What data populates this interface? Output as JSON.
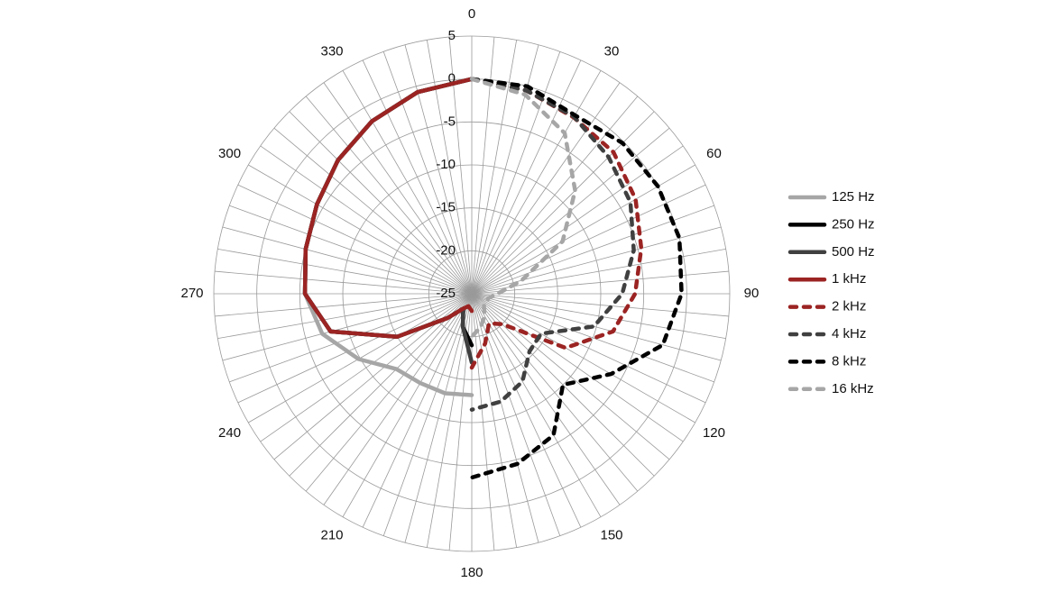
{
  "chart_data": {
    "type": "polar",
    "rlim": [
      -25,
      5
    ],
    "rticks": [
      -25,
      -20,
      -15,
      -10,
      -5,
      0,
      5
    ],
    "thetaticks": [
      0,
      30,
      60,
      90,
      120,
      150,
      180,
      210,
      240,
      270,
      300,
      330
    ],
    "thetagrid": [
      0,
      5,
      10,
      15,
      20,
      25,
      30,
      35,
      40,
      45,
      50,
      55,
      60,
      65,
      70,
      75,
      80,
      85,
      90,
      95,
      100,
      105,
      110,
      115,
      120,
      125,
      130,
      135,
      140,
      145,
      150,
      155,
      160,
      165,
      170,
      175,
      180,
      185,
      190,
      195,
      200,
      205,
      210,
      215,
      220,
      225,
      230,
      235,
      240,
      245,
      250,
      255,
      260,
      265,
      270,
      275,
      280,
      285,
      290,
      295,
      300,
      305,
      310,
      315,
      320,
      325,
      330,
      335,
      340,
      345,
      350,
      355
    ],
    "grid": true,
    "legend": "right",
    "series": [
      {
        "name": "125 Hz",
        "color": "#a6a6a6",
        "dashed": false,
        "theta": [
          180,
          195,
          210,
          225,
          240,
          255,
          270,
          285,
          300,
          315,
          330,
          345,
          360
        ],
        "values": [
          -13.2,
          -13,
          -13,
          -12.6,
          -9.8,
          -7,
          -5.6,
          -5,
          -4.2,
          -3,
          -1.8,
          -0.7,
          0
        ]
      },
      {
        "name": "250 Hz",
        "color": "#000000",
        "dashed": false,
        "theta": [
          180,
          195,
          210,
          225,
          240,
          255,
          270,
          285,
          300,
          315,
          330,
          345,
          360
        ],
        "values": [
          -19,
          -21,
          -23,
          -21,
          -15,
          -8,
          -5.6,
          -5,
          -4.2,
          -3,
          -1.8,
          -0.7,
          0
        ]
      },
      {
        "name": "500 Hz",
        "color": "#404040",
        "dashed": false,
        "theta": [
          180,
          195,
          210,
          225,
          240,
          255,
          270,
          285,
          300,
          315,
          330,
          345,
          360
        ],
        "values": [
          -17,
          -21,
          -23,
          -21,
          -15,
          -8,
          -5.6,
          -5,
          -4.2,
          -3,
          -1.8,
          -0.7,
          0
        ]
      },
      {
        "name": "1 kHz",
        "color": "#9b2423",
        "dashed": false,
        "theta": [
          180,
          195,
          210,
          225,
          240,
          255,
          270,
          285,
          300,
          315,
          330,
          345,
          360
        ],
        "values": [
          -23,
          -23.5,
          -23,
          -21,
          -15,
          -8,
          -5.6,
          -5,
          -4.2,
          -3,
          -1.8,
          -0.7,
          0
        ]
      },
      {
        "name": "2 kHz",
        "color": "#9b2423",
        "dashed": true,
        "theta": [
          0,
          15,
          30,
          45,
          60,
          75,
          90,
          105,
          120,
          135,
          150,
          165,
          180
        ],
        "values": [
          0,
          -0.5,
          -1.3,
          -1.7,
          -3,
          -4.6,
          -6,
          -8,
          -12.4,
          -20,
          -21,
          -19,
          -16.4
        ]
      },
      {
        "name": "4 kHz",
        "color": "#404040",
        "dashed": true,
        "theta": [
          0,
          15,
          30,
          45,
          60,
          75,
          90,
          105,
          120,
          135,
          150,
          165,
          180
        ],
        "values": [
          0,
          -0.5,
          -1.2,
          -2.5,
          -3.7,
          -5.5,
          -7.5,
          -10.3,
          -15.7,
          -15.5,
          -13.2,
          -12,
          -11.5
        ]
      },
      {
        "name": "8 kHz",
        "color": "#000000",
        "dashed": true,
        "theta": [
          0,
          15,
          30,
          45,
          60,
          75,
          90,
          105,
          120,
          135,
          150,
          165,
          180
        ],
        "values": [
          0,
          0,
          -1,
          -0.2,
          0,
          0,
          -0.6,
          -2,
          -6.3,
          -10,
          -6,
          -4.5,
          -3.6
        ]
      },
      {
        "name": "16 kHz",
        "color": "#a6a6a6",
        "dashed": true,
        "theta": [
          0,
          15,
          30,
          45,
          60,
          75,
          90,
          105,
          120,
          135,
          150,
          165,
          180
        ],
        "values": [
          0,
          -1,
          -3.4,
          -8,
          -12.8,
          -19,
          -22,
          -23,
          -23,
          -23,
          -22,
          -21,
          -20
        ]
      }
    ]
  }
}
